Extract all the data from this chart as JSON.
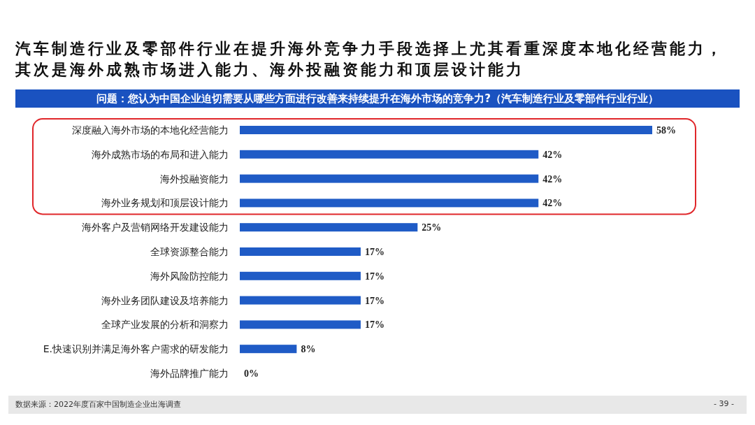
{
  "chart_data": {
    "type": "bar",
    "orientation": "horizontal",
    "title": "汽车制造行业及零部件行业在提升海外竞争力手段选择上尤其看重深度本地化经营能力，其次是海外成熟市场进入能力、海外投融资能力和顶层设计能力",
    "subtitle": "问题：您认为中国企业迫切需要从哪些方面进行改善来持续提升在海外市场的竞争力?（汽车制造行业及零部件行业行业）",
    "categories": [
      "深度融入海外市场的本地化经营能力",
      "海外成熟市场的布局和进入能力",
      "海外投融资能力",
      "海外业务规划和顶层设计能力",
      "海外客户及营销网络开发建设能力",
      "全球资源整合能力",
      "海外风险防控能力",
      "海外业务团队建设及培养能力",
      "全球产业发展的分析和洞察力",
      "E.快速识别并满足海外客户需求的研发能力",
      "海外品牌推广能力"
    ],
    "values": [
      58,
      42,
      42,
      42,
      25,
      17,
      17,
      17,
      17,
      8,
      0
    ],
    "value_labels": [
      "58%",
      "42%",
      "42%",
      "42%",
      "25%",
      "17%",
      "17%",
      "17%",
      "17%",
      "8%",
      "0%"
    ],
    "color": "#1f5bc6",
    "annotations": [
      "数据来源：2022年度百家中国制造企业出海调查",
      "- 39 -"
    ]
  }
}
